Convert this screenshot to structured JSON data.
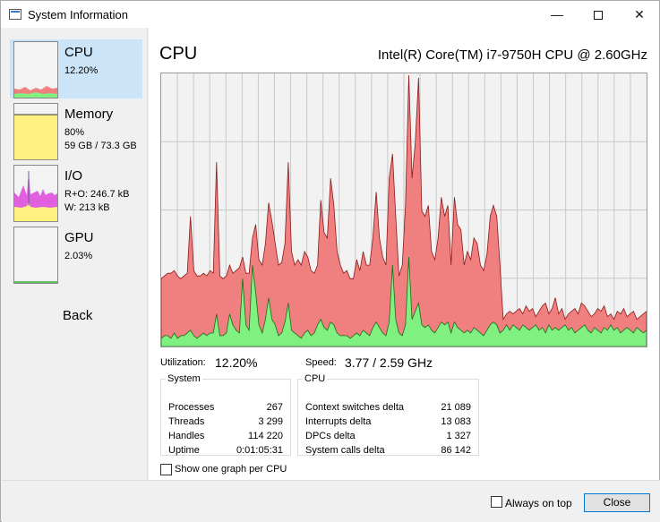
{
  "window": {
    "title": "System Information",
    "controls": {
      "minimize": "—",
      "close": "✕"
    }
  },
  "sidebar": {
    "items": [
      {
        "title": "CPU",
        "lines": [
          "12.20%"
        ]
      },
      {
        "title": "Memory",
        "lines": [
          "80%",
          "59 GB / 73.3 GB"
        ]
      },
      {
        "title": "I/O",
        "lines": [
          "R+O: 246.7 kB",
          "W: 213 kB"
        ]
      },
      {
        "title": "GPU",
        "lines": [
          "2.03%"
        ]
      }
    ],
    "back_label": "Back"
  },
  "main": {
    "title": "CPU",
    "cpu_model": "Intel(R) Core(TM) i7-9750H CPU @ 2.60GHz",
    "utilization_label": "Utilization:",
    "utilization_value": "12.20%",
    "speed_label": "Speed:",
    "speed_value": "3.77 / 2.59 GHz",
    "system_group": {
      "title": "System",
      "rows": [
        {
          "label": "Processes",
          "value": "267"
        },
        {
          "label": "Threads",
          "value": "3 299"
        },
        {
          "label": "Handles",
          "value": "114 220"
        },
        {
          "label": "Uptime",
          "value": "0:01:05:31"
        }
      ]
    },
    "cpu_group": {
      "title": "CPU",
      "rows": [
        {
          "label": "Context switches delta",
          "value": "21 089"
        },
        {
          "label": "Interrupts delta",
          "value": "13 083"
        },
        {
          "label": "DPCs delta",
          "value": "1 327"
        },
        {
          "label": "System calls delta",
          "value": "86 142"
        }
      ]
    },
    "one_graph_checkbox": {
      "label": "Show one graph per CPU",
      "checked": false
    }
  },
  "footer": {
    "always_on_top": {
      "label": "Always on top",
      "checked": false
    },
    "close_label": "Close"
  },
  "colors": {
    "total": "#f08080",
    "kernel": "#80f080",
    "memory": "#fff080",
    "io_read": "#e060e0",
    "selected": "#cce4f7",
    "grid": "#c8c8c8"
  },
  "cpu_graph": {
    "total": [
      25,
      26,
      27,
      27,
      28,
      26,
      25,
      26,
      27,
      48,
      28,
      26,
      26,
      27,
      26,
      28,
      27,
      68,
      26,
      25,
      26,
      30,
      27,
      28,
      29,
      33,
      27,
      27,
      40,
      45,
      32,
      30,
      38,
      53,
      46,
      38,
      30,
      31,
      38,
      68,
      35,
      30,
      32,
      30,
      35,
      33,
      28,
      27,
      30,
      54,
      42,
      40,
      62,
      52,
      35,
      30,
      27,
      28,
      25,
      25,
      32,
      28,
      35,
      30,
      30,
      40,
      57,
      40,
      33,
      30,
      62,
      71,
      48,
      26,
      30,
      52,
      100,
      62,
      75,
      99,
      50,
      48,
      52,
      35,
      32,
      40,
      55,
      48,
      52,
      30,
      55,
      45,
      43,
      30,
      35,
      32,
      40,
      38,
      30,
      28,
      34,
      48,
      52,
      48,
      30,
      10,
      12,
      13,
      12,
      13,
      14,
      12,
      15,
      13,
      14,
      11,
      13,
      15,
      16,
      12,
      14,
      18,
      12,
      14,
      10,
      12,
      13,
      14,
      12,
      16,
      15,
      13,
      11,
      12,
      14,
      13,
      15,
      11,
      12,
      10,
      13,
      12,
      14,
      11,
      12,
      13,
      10,
      11,
      12,
      13
    ],
    "kernel": [
      3,
      4,
      4,
      3,
      5,
      3,
      4,
      4,
      5,
      6,
      4,
      3,
      4,
      5,
      4,
      5,
      5,
      12,
      4,
      4,
      5,
      12,
      8,
      6,
      5,
      25,
      8,
      6,
      30,
      20,
      8,
      5,
      10,
      18,
      10,
      8,
      4,
      5,
      9,
      16,
      6,
      5,
      4,
      3,
      5,
      6,
      4,
      5,
      8,
      10,
      7,
      6,
      9,
      8,
      5,
      4,
      4,
      4,
      3,
      4,
      5,
      4,
      6,
      5,
      4,
      7,
      9,
      7,
      5,
      4,
      9,
      30,
      10,
      5,
      4,
      8,
      33,
      10,
      13,
      16,
      8,
      7,
      8,
      6,
      5,
      7,
      9,
      8,
      9,
      5,
      9,
      7,
      6,
      5,
      6,
      5,
      7,
      6,
      5,
      4,
      6,
      8,
      9,
      8,
      5,
      6,
      8,
      6,
      8,
      7,
      6,
      8,
      7,
      6,
      7,
      8,
      6,
      7,
      5,
      8,
      6,
      7,
      6,
      7,
      8,
      6,
      7,
      5,
      6,
      7,
      8,
      6,
      5,
      7,
      6,
      5,
      7,
      6,
      8,
      6,
      7,
      5,
      6,
      7,
      6,
      5,
      7,
      6,
      5,
      6
    ]
  }
}
